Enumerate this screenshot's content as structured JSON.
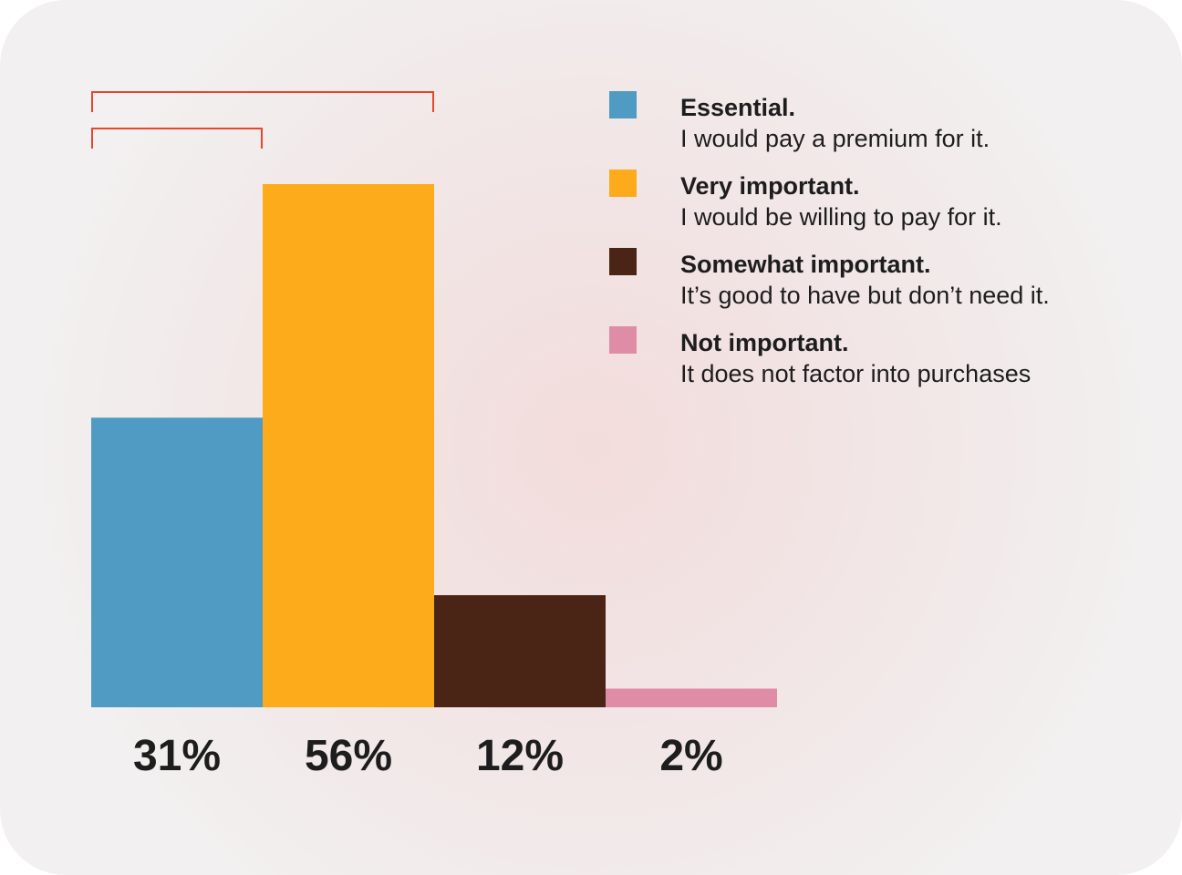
{
  "chart_data": {
    "type": "bar",
    "categories": [
      "Essential",
      "Very important",
      "Somewhat important",
      "Not important"
    ],
    "values": [
      31,
      56,
      12,
      2
    ],
    "value_labels": [
      "31%",
      "56%",
      "12%",
      "2%"
    ],
    "colors": [
      "#4f9bc3",
      "#fdab1a",
      "#4a2515",
      "#df8ca7"
    ],
    "bracket_color": "#e8452c",
    "brackets": [
      {
        "from_category": 0,
        "to_category": 1
      },
      {
        "from_category": 0,
        "to_category": 0
      }
    ],
    "ylim": [
      0,
      56
    ],
    "title": "",
    "xlabel": "",
    "ylabel": "",
    "legend_position": "top-right"
  },
  "legend": [
    {
      "title": "Essential.",
      "desc": "I would pay a premium for it.",
      "color": "#4f9bc3"
    },
    {
      "title": "Very important.",
      "desc": "I would be willing to pay for it.",
      "color": "#fdab1a"
    },
    {
      "title": "Somewhat important.",
      "desc": "It’s good to have but don’t need it.",
      "color": "#4a2515"
    },
    {
      "title": "Not important.",
      "desc": "It does not factor into purchases",
      "color": "#df8ca7"
    }
  ]
}
